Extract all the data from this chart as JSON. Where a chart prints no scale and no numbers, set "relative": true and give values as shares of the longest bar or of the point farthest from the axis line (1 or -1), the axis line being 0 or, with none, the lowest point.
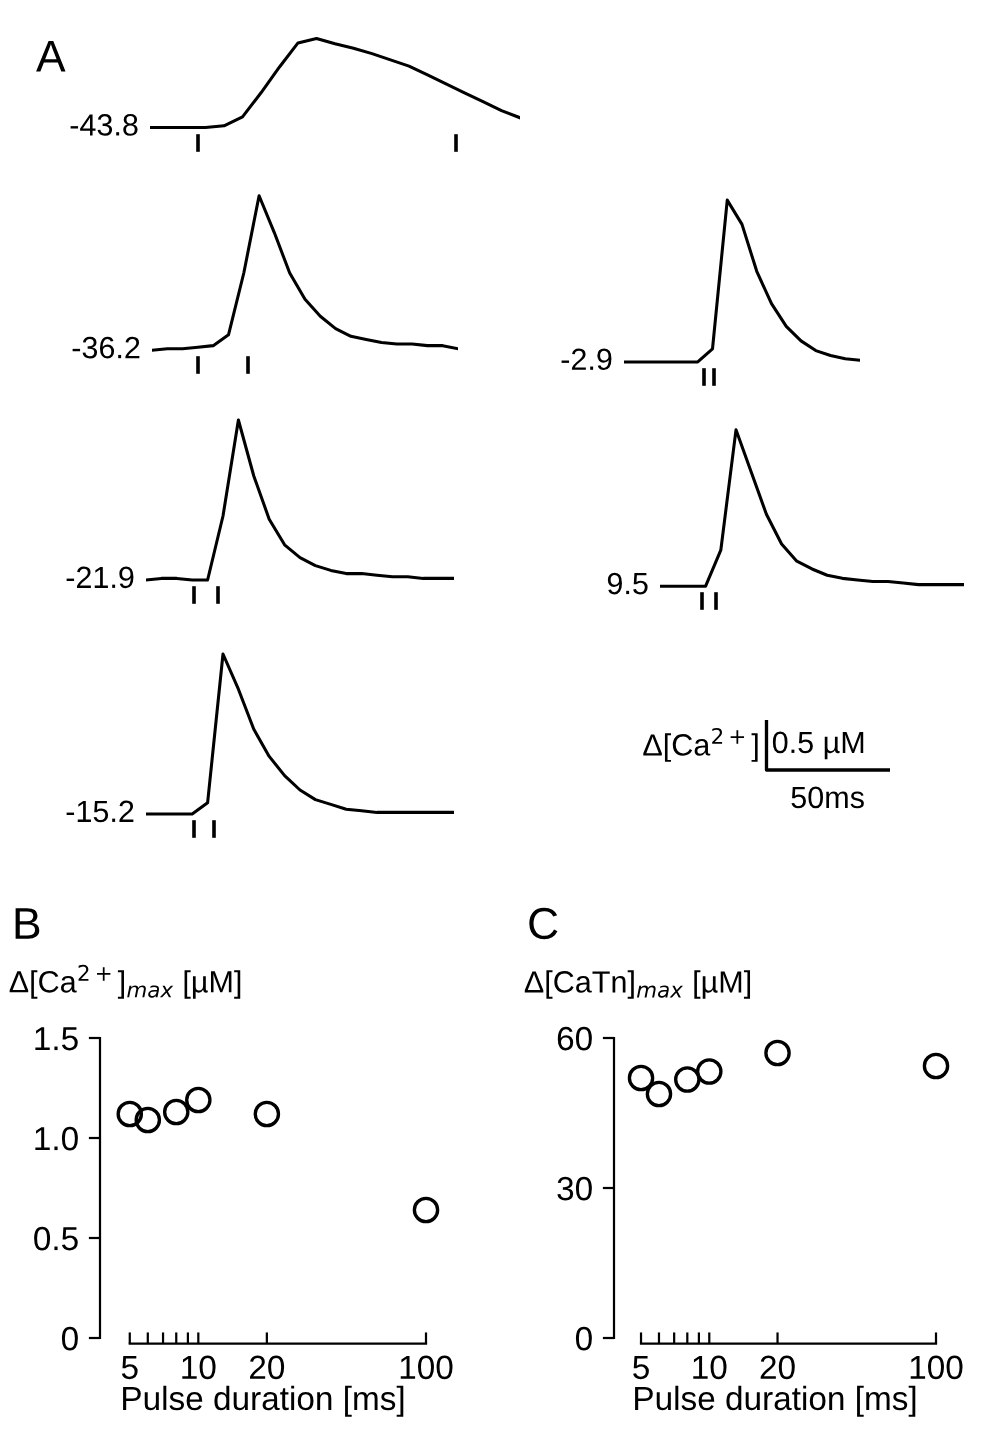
{
  "chart_data": [
    {
      "type": "line",
      "title": "A",
      "annotations": [
        "-43.8"
      ],
      "relative": true,
      "color": "#000000",
      "line_style": "solid",
      "marker": "none",
      "tick_labels": false,
      "categories": [
        null,
        null,
        null,
        null,
        null,
        null,
        null,
        null,
        null,
        null,
        null,
        null,
        null,
        null,
        null,
        null,
        null,
        null,
        null,
        null,
        null
      ],
      "values": [
        0,
        0,
        0,
        0,
        0.02,
        0.12,
        0.39,
        0.68,
        0.95,
        1,
        0.94,
        0.89,
        0.83,
        0.76,
        0.69,
        0.59,
        0.49,
        0.39,
        0.29,
        0.19,
        0.11
      ]
    },
    {
      "type": "line",
      "annotations": [
        "-36.2"
      ],
      "relative": true,
      "color": "#000000",
      "line_style": "solid",
      "marker": "none",
      "tick_labels": false,
      "categories": [
        null,
        null,
        null,
        null,
        null,
        null,
        null,
        null,
        null,
        null,
        null,
        null,
        null,
        null,
        null,
        null,
        null,
        null,
        null,
        null,
        null
      ],
      "values": [
        0,
        0.01,
        0.01,
        0.02,
        0.03,
        0.1,
        0.5,
        1,
        0.76,
        0.5,
        0.33,
        0.22,
        0.14,
        0.09,
        0.07,
        0.05,
        0.04,
        0.04,
        0.03,
        0.03,
        0.01
      ]
    },
    {
      "type": "line",
      "annotations": [
        "-21.9"
      ],
      "relative": true,
      "color": "#000000",
      "line_style": "solid",
      "marker": "none",
      "tick_labels": false,
      "categories": [
        null,
        null,
        null,
        null,
        null,
        null,
        null,
        null,
        null,
        null,
        null,
        null,
        null,
        null,
        null,
        null,
        null,
        null,
        null,
        null,
        null
      ],
      "values": [
        0,
        0.01,
        0.01,
        0,
        0,
        0.4,
        1,
        0.65,
        0.38,
        0.22,
        0.14,
        0.09,
        0.06,
        0.04,
        0.04,
        0.03,
        0.02,
        0.02,
        0.01,
        0.01,
        0.01
      ]
    },
    {
      "type": "line",
      "annotations": [
        "-15.2"
      ],
      "relative": true,
      "color": "#000000",
      "line_style": "solid",
      "marker": "none",
      "tick_labels": false,
      "categories": [
        null,
        null,
        null,
        null,
        null,
        null,
        null,
        null,
        null,
        null,
        null,
        null,
        null,
        null,
        null,
        null,
        null,
        null,
        null,
        null,
        null
      ],
      "values": [
        0,
        0,
        0,
        0,
        0.07,
        1,
        0.78,
        0.53,
        0.36,
        0.24,
        0.15,
        0.09,
        0.06,
        0.03,
        0.02,
        0.01,
        0.01,
        0.01,
        0.01,
        0.01,
        0.01
      ]
    },
    {
      "type": "line",
      "annotations": [
        "-2.9"
      ],
      "relative": true,
      "color": "#000000",
      "line_style": "solid",
      "marker": "none",
      "tick_labels": false,
      "categories": [
        null,
        null,
        null,
        null,
        null,
        null,
        null,
        null,
        null,
        null,
        null,
        null,
        null,
        null,
        null,
        null,
        null
      ],
      "values": [
        0,
        0,
        0,
        0,
        0,
        0,
        0.08,
        1,
        0.85,
        0.56,
        0.36,
        0.22,
        0.13,
        0.07,
        0.04,
        0.02,
        0.01
      ]
    },
    {
      "type": "line",
      "annotations": [
        "9.5"
      ],
      "relative": true,
      "color": "#000000",
      "line_style": "solid",
      "marker": "none",
      "tick_labels": false,
      "categories": [
        null,
        null,
        null,
        null,
        null,
        null,
        null,
        null,
        null,
        null,
        null,
        null,
        null,
        null,
        null,
        null,
        null,
        null,
        null,
        null,
        null
      ],
      "values": [
        0,
        0,
        0,
        0,
        0.23,
        1,
        0.73,
        0.46,
        0.27,
        0.16,
        0.11,
        0.07,
        0.05,
        0.04,
        0.03,
        0.03,
        0.02,
        0.01,
        0.01,
        0.01,
        0.01
      ]
    },
    {
      "type": "other",
      "annotations": [
        "Δ[Ca$^{2+}$]",
        "0.5 µM",
        "50ms"
      ]
    },
    {
      "type": "scatter",
      "title": "B",
      "ylabel": "Δ[Ca$^{2+}$]$_{max}$ [µM]",
      "xlabel": "Pulse duration [ms]",
      "log": "x",
      "marker": "circle",
      "color": "#000000",
      "x": [
        5,
        6,
        8,
        10,
        20,
        100
      ],
      "values": [
        1.12,
        1.09,
        1.13,
        1.19,
        1.12,
        0.64
      ],
      "xlim": [
        3.7,
        100
      ],
      "xticks": [
        5,
        {
          "value": 6,
          "label": null
        },
        {
          "value": 7,
          "label": null
        },
        {
          "value": 8,
          "label": null
        },
        {
          "value": 9,
          "label": null
        },
        10,
        20,
        100
      ],
      "ylim": [
        0,
        1.5
      ],
      "yticks": [
        0,
        0.5,
        {
          "value": 1,
          "label": "1.0"
        },
        1.5
      ]
    },
    {
      "type": "scatter",
      "title": "C",
      "ylabel": "Δ[CaTn]$_{max}$ [µM]",
      "xlabel": "Pulse duration [ms]",
      "log": "x",
      "marker": "circle",
      "color": "#000000",
      "x": [
        5,
        6,
        8,
        10,
        20,
        100
      ],
      "values": [
        52,
        48.8,
        51.7,
        53.3,
        57,
        54.4
      ],
      "xlim": [
        3.8,
        100
      ],
      "xticks": [
        5,
        {
          "value": 6,
          "label": null
        },
        {
          "value": 7,
          "label": null
        },
        {
          "value": 8,
          "label": null
        },
        {
          "value": 9,
          "label": null
        },
        10,
        20,
        100
      ],
      "ylim": [
        0,
        60
      ],
      "yticks": [
        0,
        30,
        60
      ]
    }
  ]
}
